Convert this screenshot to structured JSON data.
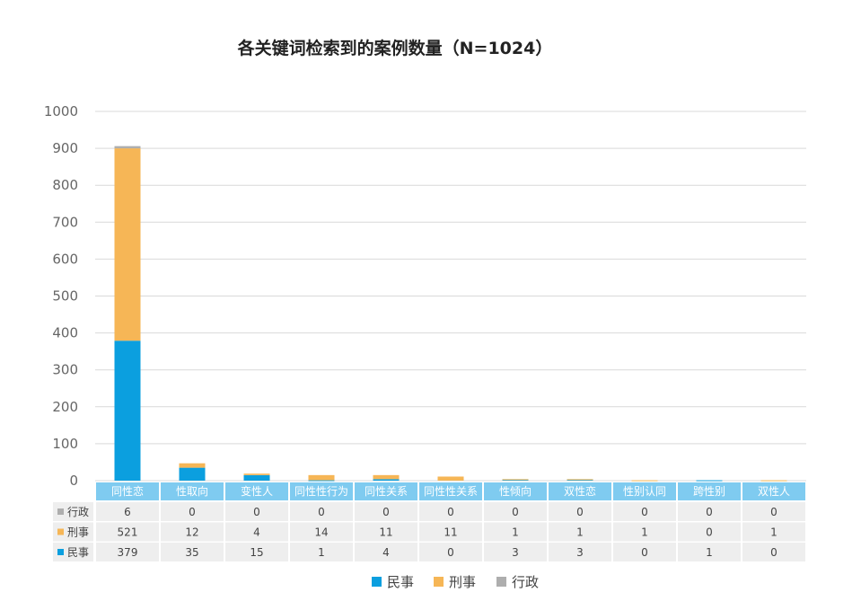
{
  "chart_data": {
    "type": "bar",
    "stacked": true,
    "title": "各关键词检索到的案例数量（N=1024）",
    "categories": [
      "同性恋",
      "性取向",
      "变性人",
      "同性性行为",
      "同性关系",
      "同性性关系",
      "性倾向",
      "双性恋",
      "性别认同",
      "跨性别",
      "双性人"
    ],
    "series": [
      {
        "name": "民事",
        "color": "#0b9fdf",
        "values": [
          379,
          35,
          15,
          1,
          4,
          0,
          3,
          3,
          0,
          1,
          0
        ]
      },
      {
        "name": "刑事",
        "color": "#f6b656",
        "values": [
          521,
          12,
          4,
          14,
          11,
          11,
          1,
          1,
          1,
          0,
          1
        ]
      },
      {
        "name": "行政",
        "color": "#aeaeae",
        "values": [
          6,
          0,
          0,
          0,
          0,
          0,
          0,
          0,
          0,
          0,
          0
        ]
      }
    ],
    "yticks": [
      0,
      100,
      200,
      300,
      400,
      500,
      600,
      700,
      800,
      900,
      1000
    ],
    "ylim": [
      0,
      1000
    ],
    "grid": true,
    "legend_position": "bottom",
    "data_table": true,
    "table_row_order": [
      "行政",
      "刑事",
      "民事"
    ]
  },
  "style": {
    "gridline_color": "#d9d9d9",
    "header_fill": "#7fcbf0",
    "table_cell_fill": "#eeeeee"
  }
}
